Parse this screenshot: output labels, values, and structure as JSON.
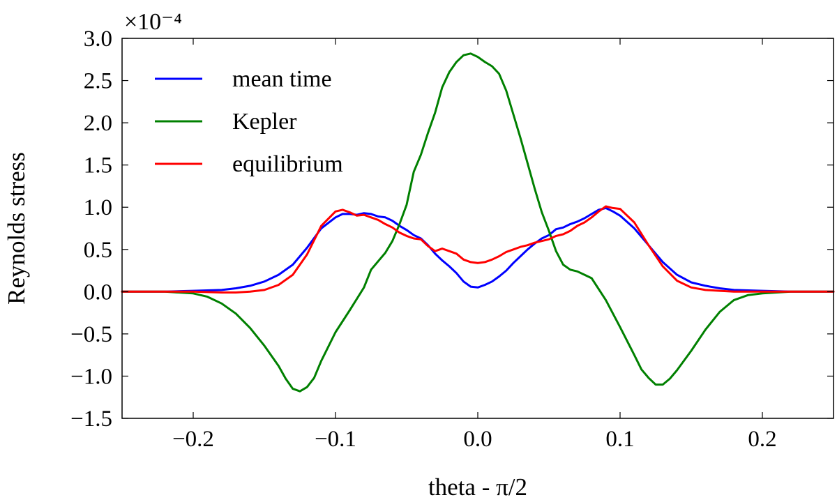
{
  "chart_data": {
    "type": "line",
    "title": "",
    "xlabel": "theta - π/2",
    "ylabel": "Reynolds stress",
    "y_scale_label": "×10⁻⁴",
    "xlim": [
      -0.25,
      0.25
    ],
    "ylim": [
      -1.5,
      3.0
    ],
    "x_ticks": [
      -0.2,
      -0.1,
      0.0,
      0.1,
      0.2
    ],
    "x_tick_labels": [
      "−0.2",
      "−0.1",
      "0.0",
      "0.1",
      "0.2"
    ],
    "y_ticks": [
      -1.5,
      -1.0,
      -0.5,
      0.0,
      0.5,
      1.0,
      1.5,
      2.0,
      2.5,
      3.0
    ],
    "y_tick_labels": [
      "−1.5",
      "−1.0",
      "−0.5",
      "0.0",
      "0.5",
      "1.0",
      "1.5",
      "2.0",
      "2.5",
      "3.0"
    ],
    "grid": false,
    "legend_position": "top-left",
    "series": [
      {
        "name": "mean time",
        "color": "#0000ff",
        "x": [
          -0.25,
          -0.22,
          -0.2,
          -0.18,
          -0.17,
          -0.16,
          -0.15,
          -0.14,
          -0.13,
          -0.12,
          -0.11,
          -0.1,
          -0.095,
          -0.09,
          -0.085,
          -0.08,
          -0.075,
          -0.07,
          -0.065,
          -0.06,
          -0.055,
          -0.05,
          -0.045,
          -0.04,
          -0.035,
          -0.03,
          -0.025,
          -0.02,
          -0.015,
          -0.01,
          -0.005,
          0.0,
          0.005,
          0.01,
          0.015,
          0.02,
          0.025,
          0.03,
          0.035,
          0.04,
          0.045,
          0.05,
          0.055,
          0.06,
          0.065,
          0.07,
          0.075,
          0.08,
          0.085,
          0.09,
          0.095,
          0.1,
          0.11,
          0.12,
          0.13,
          0.14,
          0.15,
          0.16,
          0.17,
          0.18,
          0.2,
          0.22,
          0.25
        ],
        "y": [
          0.0,
          0.0,
          0.01,
          0.02,
          0.04,
          0.07,
          0.12,
          0.2,
          0.32,
          0.52,
          0.75,
          0.88,
          0.92,
          0.92,
          0.91,
          0.93,
          0.92,
          0.89,
          0.88,
          0.84,
          0.78,
          0.73,
          0.67,
          0.63,
          0.55,
          0.45,
          0.37,
          0.3,
          0.22,
          0.12,
          0.06,
          0.05,
          0.08,
          0.12,
          0.18,
          0.25,
          0.34,
          0.42,
          0.5,
          0.57,
          0.63,
          0.67,
          0.74,
          0.76,
          0.8,
          0.83,
          0.87,
          0.92,
          0.97,
          0.99,
          0.95,
          0.9,
          0.75,
          0.55,
          0.35,
          0.2,
          0.11,
          0.07,
          0.04,
          0.02,
          0.01,
          0.0,
          0.0
        ]
      },
      {
        "name": "Kepler",
        "color": "#008000",
        "x": [
          -0.25,
          -0.22,
          -0.2,
          -0.19,
          -0.18,
          -0.17,
          -0.16,
          -0.15,
          -0.14,
          -0.135,
          -0.13,
          -0.125,
          -0.12,
          -0.115,
          -0.11,
          -0.1,
          -0.09,
          -0.08,
          -0.075,
          -0.07,
          -0.065,
          -0.06,
          -0.055,
          -0.05,
          -0.045,
          -0.04,
          -0.035,
          -0.03,
          -0.025,
          -0.02,
          -0.015,
          -0.01,
          -0.005,
          0.0,
          0.005,
          0.01,
          0.015,
          0.02,
          0.025,
          0.03,
          0.035,
          0.04,
          0.045,
          0.05,
          0.055,
          0.06,
          0.065,
          0.07,
          0.075,
          0.08,
          0.09,
          0.1,
          0.11,
          0.115,
          0.12,
          0.125,
          0.13,
          0.135,
          0.14,
          0.15,
          0.16,
          0.17,
          0.18,
          0.19,
          0.2,
          0.22,
          0.25
        ],
        "y": [
          0.0,
          0.0,
          -0.02,
          -0.06,
          -0.14,
          -0.26,
          -0.43,
          -0.64,
          -0.88,
          -1.03,
          -1.15,
          -1.18,
          -1.13,
          -1.02,
          -0.82,
          -0.48,
          -0.22,
          0.05,
          0.26,
          0.36,
          0.46,
          0.6,
          0.8,
          1.03,
          1.42,
          1.62,
          1.88,
          2.12,
          2.42,
          2.6,
          2.72,
          2.8,
          2.82,
          2.78,
          2.72,
          2.67,
          2.58,
          2.38,
          2.1,
          1.82,
          1.52,
          1.22,
          0.94,
          0.72,
          0.48,
          0.32,
          0.26,
          0.24,
          0.2,
          0.16,
          -0.1,
          -0.42,
          -0.75,
          -0.92,
          -1.02,
          -1.1,
          -1.1,
          -1.03,
          -0.93,
          -0.7,
          -0.45,
          -0.24,
          -0.1,
          -0.04,
          -0.02,
          0.0,
          0.0
        ]
      },
      {
        "name": "equilibrium",
        "color": "#ff0000",
        "x": [
          -0.25,
          -0.2,
          -0.18,
          -0.17,
          -0.16,
          -0.15,
          -0.14,
          -0.13,
          -0.12,
          -0.11,
          -0.1,
          -0.095,
          -0.09,
          -0.085,
          -0.08,
          -0.075,
          -0.07,
          -0.065,
          -0.06,
          -0.055,
          -0.05,
          -0.045,
          -0.04,
          -0.035,
          -0.03,
          -0.025,
          -0.02,
          -0.015,
          -0.01,
          -0.005,
          0.0,
          0.005,
          0.01,
          0.015,
          0.02,
          0.025,
          0.03,
          0.035,
          0.04,
          0.045,
          0.05,
          0.055,
          0.06,
          0.065,
          0.07,
          0.075,
          0.08,
          0.085,
          0.09,
          0.095,
          0.1,
          0.11,
          0.12,
          0.13,
          0.14,
          0.15,
          0.16,
          0.17,
          0.18,
          0.2,
          0.25
        ],
        "y": [
          0.0,
          0.0,
          -0.01,
          -0.01,
          0.0,
          0.02,
          0.08,
          0.2,
          0.44,
          0.78,
          0.95,
          0.97,
          0.94,
          0.9,
          0.91,
          0.88,
          0.85,
          0.8,
          0.76,
          0.7,
          0.66,
          0.63,
          0.62,
          0.54,
          0.48,
          0.51,
          0.48,
          0.45,
          0.38,
          0.35,
          0.34,
          0.35,
          0.38,
          0.42,
          0.47,
          0.5,
          0.53,
          0.55,
          0.58,
          0.6,
          0.62,
          0.66,
          0.68,
          0.72,
          0.78,
          0.82,
          0.88,
          0.95,
          1.01,
          0.99,
          0.98,
          0.82,
          0.55,
          0.3,
          0.13,
          0.05,
          0.02,
          0.01,
          0.0,
          0.0,
          0.0
        ]
      }
    ]
  }
}
